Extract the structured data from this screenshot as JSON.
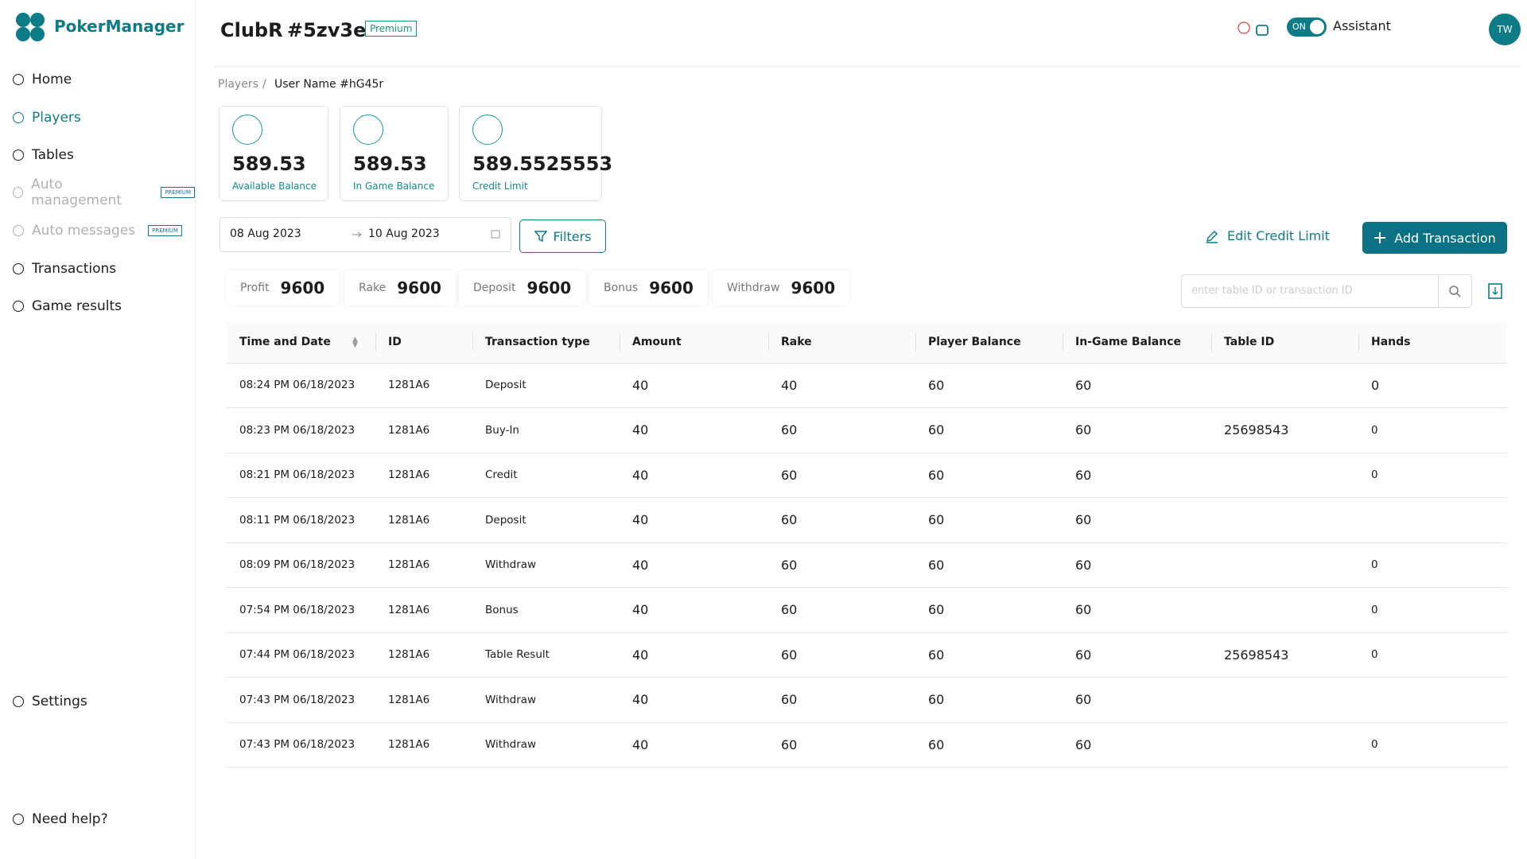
{
  "sidebar": {
    "brand": "PokerManager",
    "nav": [
      {
        "label": "Home"
      },
      {
        "label": "Players"
      },
      {
        "label": "Tables"
      },
      {
        "label": "Auto management",
        "badge": "PREMIUM"
      },
      {
        "label": "Auto messages",
        "badge": "PREMIUM"
      },
      {
        "label": "Transactions"
      },
      {
        "label": "Game results"
      },
      {
        "label": "Settings"
      },
      {
        "label": "Need help?"
      }
    ]
  },
  "header": {
    "club": "ClubR",
    "club_id": "#5zv3e",
    "plan": "Premium",
    "toggle": "ON",
    "assistant": "Assistant",
    "avatar": "TW"
  },
  "breadcrumb": [
    "Players",
    "User Name #hG45r"
  ],
  "cards": [
    {
      "value": "589.53",
      "label": "Available Balance"
    },
    {
      "value": "589.53",
      "label": "In Game Balance"
    },
    {
      "value": "589.5525553",
      "label": "Credit Limit"
    }
  ],
  "date_range": {
    "from": "08 Aug 2023",
    "to": "10 Aug 2023"
  },
  "filters": "Filters",
  "edit_credit": "Edit Credit Limit",
  "add_transaction": "Add Transaction",
  "stats": [
    {
      "label": "Profit",
      "value": 9600
    },
    {
      "label": "Rake",
      "value": 9600
    },
    {
      "label": "Deposit",
      "value": 9600
    },
    {
      "label": "Bonus",
      "value": 9600
    },
    {
      "label": "Withdraw",
      "value": 9600
    }
  ],
  "search_placeholder": "enter table ID or transaction ID",
  "table": {
    "columns": [
      "Time and Date",
      "ID",
      "Transaction type",
      "Amount",
      "Rake",
      "Player Balance",
      "In-Game Balance",
      "Table ID",
      "Hands"
    ],
    "rows": [
      [
        "08:24 PM 06/18/2023",
        "1281A6",
        "Deposit",
        40,
        40,
        60,
        60,
        null,
        0
      ],
      [
        "08:23 PM 06/18/2023",
        "1281A6",
        "Buy-In",
        40,
        60,
        60,
        60,
        25698543,
        0
      ],
      [
        "08:21 PM 06/18/2023",
        "1281A6",
        "Credit",
        40,
        60,
        60,
        60,
        null,
        0
      ],
      [
        "08:11 PM 06/18/2023",
        "1281A6",
        "Deposit",
        40,
        60,
        60,
        60,
        null,
        null
      ],
      [
        "08:09 PM 06/18/2023",
        "1281A6",
        "Withdraw",
        40,
        60,
        60,
        60,
        null,
        0
      ],
      [
        "07:54 PM 06/18/2023",
        "1281A6",
        "Bonus",
        40,
        60,
        60,
        60,
        null,
        0
      ],
      [
        "07:44 PM 06/18/2023",
        "1281A6",
        "Table Result",
        40,
        60,
        60,
        60,
        25698543,
        0
      ],
      [
        "07:43 PM 06/18/2023",
        "1281A6",
        "Withdraw",
        40,
        60,
        60,
        60,
        null,
        null
      ],
      [
        "07:43 PM 06/18/2023",
        "1281A6",
        "Withdraw",
        40,
        60,
        60,
        60,
        null,
        0
      ]
    ]
  }
}
